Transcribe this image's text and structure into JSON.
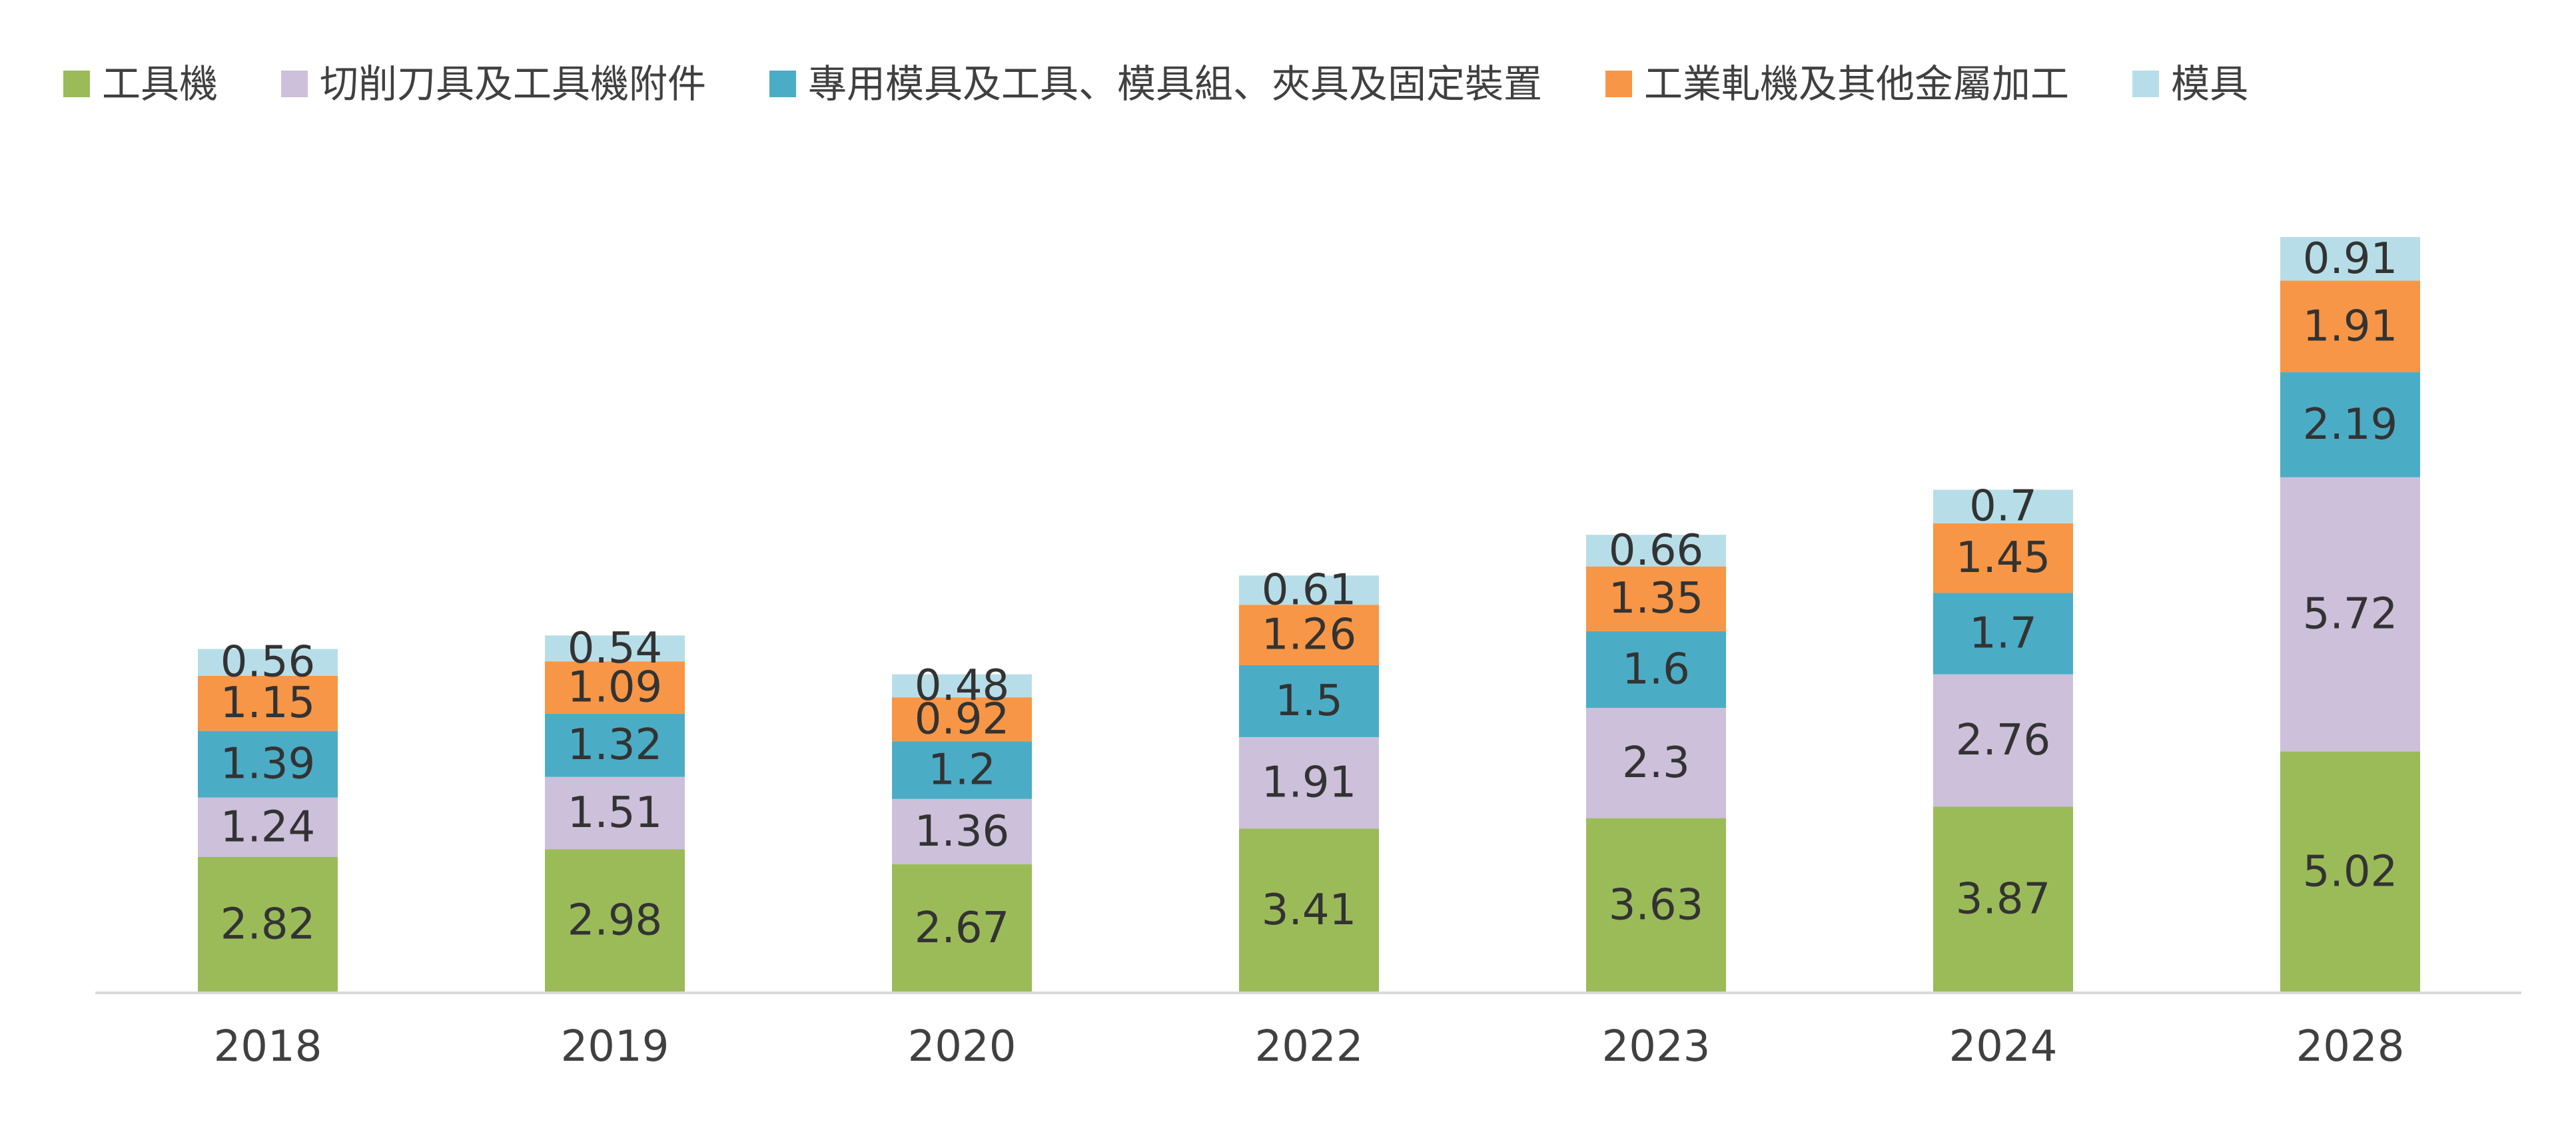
{
  "chart_data": {
    "type": "bar",
    "stacked": true,
    "title": "",
    "xlabel": "",
    "ylabel": "",
    "categories": [
      "2018",
      "2019",
      "2020",
      "2022",
      "2023",
      "2024",
      "2028"
    ],
    "series": [
      {
        "name": "工具機",
        "color": "#9BBB59",
        "values": [
          2.82,
          2.98,
          2.67,
          3.41,
          3.63,
          3.87,
          5.02
        ]
      },
      {
        "name": "切削刀具及工具機附件",
        "color": "#CCC0DA",
        "values": [
          1.24,
          1.51,
          1.36,
          1.91,
          2.3,
          2.76,
          5.72
        ]
      },
      {
        "name": "專用模具及工具、模具組、夾具及固定裝置",
        "color": "#4BACC6",
        "values": [
          1.39,
          1.32,
          1.2,
          1.5,
          1.6,
          1.7,
          2.19
        ]
      },
      {
        "name": "工業軋機及其他金屬加工",
        "color": "#F79646",
        "values": [
          1.15,
          1.09,
          0.92,
          1.26,
          1.35,
          1.45,
          1.91
        ]
      },
      {
        "name": "模具",
        "color": "#B7DEE8",
        "values": [
          0.56,
          0.54,
          0.48,
          0.61,
          0.66,
          0.7,
          0.91
        ]
      }
    ],
    "ylim": [
      0,
      16
    ],
    "grid": false,
    "legend": "top",
    "axis_color": "#D9D9D9"
  }
}
